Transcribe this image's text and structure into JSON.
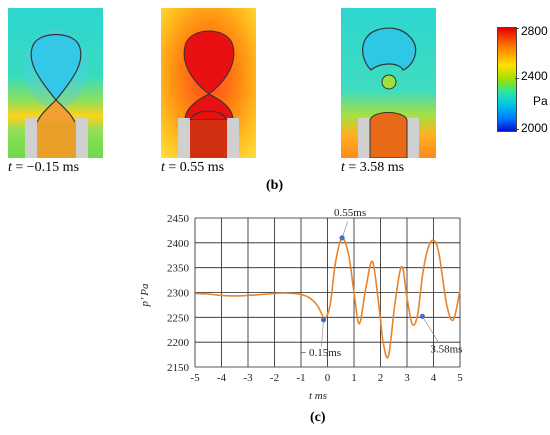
{
  "panel_b": {
    "caption": "(b)",
    "panels": [
      {
        "t_prefix": "t",
        "t_value": " = −0.15 ms"
      },
      {
        "t_prefix": "t",
        "t_value": " = 0.55 ms"
      },
      {
        "t_prefix": "t",
        "t_value": " = 3.58 ms"
      }
    ],
    "colorbar": {
      "max_label": "2800",
      "mid_label": "2400",
      "min_label": "2000",
      "unit": "Pa",
      "colors": [
        "#e60000",
        "#ff7a00",
        "#ffe000",
        "#9be000",
        "#2ee5a0",
        "#00c8e6",
        "#0078ff",
        "#0010d0"
      ]
    }
  },
  "panel_c": {
    "caption": "(c)",
    "chart_data": {
      "type": "line",
      "xlabel": "t   ms",
      "ylabel": "p’  Pa",
      "xlim": [
        -5,
        5
      ],
      "ylim": [
        2150,
        2450
      ],
      "x_ticks": [
        -5,
        -4,
        -3,
        -2,
        -1,
        0,
        1,
        2,
        3,
        4,
        5
      ],
      "y_ticks": [
        2150,
        2200,
        2250,
        2300,
        2350,
        2400,
        2450
      ],
      "grid": true,
      "line_color": "#e8842c",
      "marker_color": "#4472c4",
      "series": [
        {
          "x": [
            -5,
            -4.5,
            -4,
            -3.5,
            -3,
            -2.5,
            -2,
            -1.7,
            -1.3,
            -1,
            -0.7,
            -0.4,
            -0.2,
            -0.1,
            0.1,
            0.3,
            0.55,
            0.8,
            1.0,
            1.2,
            1.45,
            1.7,
            1.95,
            2.1,
            2.3,
            2.55,
            2.8,
            3.0,
            3.2,
            3.4,
            3.6,
            3.8,
            4.0,
            4.2,
            4.5,
            4.75,
            5.0
          ],
          "y": [
            2298,
            2297,
            2294,
            2293,
            2294,
            2296,
            2298,
            2299,
            2298,
            2296,
            2290,
            2275,
            2255,
            2246,
            2275,
            2360,
            2410,
            2375,
            2300,
            2237,
            2310,
            2362,
            2268,
            2200,
            2172,
            2280,
            2352,
            2290,
            2236,
            2255,
            2340,
            2390,
            2405,
            2380,
            2275,
            2245,
            2305
          ]
        }
      ],
      "markers": [
        {
          "x": -0.15,
          "y": 2245,
          "label": "− 0.15ms"
        },
        {
          "x": 0.55,
          "y": 2410,
          "label": "0.55ms"
        },
        {
          "x": 3.58,
          "y": 2252,
          "label": "3.58ms"
        }
      ]
    }
  }
}
